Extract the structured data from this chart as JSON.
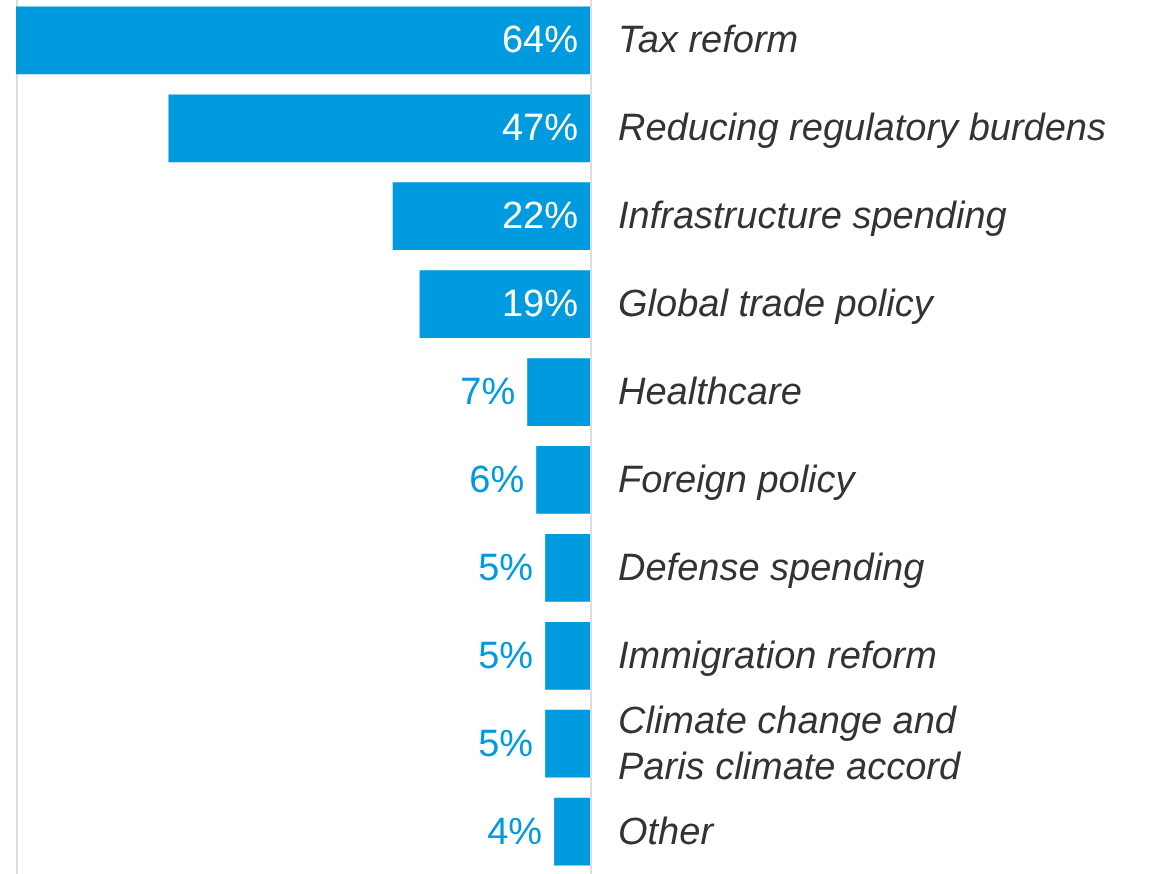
{
  "chart_data": {
    "type": "bar",
    "orientation": "horizontal",
    "categories": [
      "Tax reform",
      "Reducing regulatory burdens",
      "Infrastructure spending",
      "Global trade policy",
      "Healthcare",
      "Foreign policy",
      "Defense spending",
      "Immigration reform",
      "Climate change and\nParis climate accord",
      "Other"
    ],
    "values": [
      64,
      47,
      22,
      19,
      7,
      6,
      5,
      5,
      5,
      4
    ],
    "value_labels": [
      "64%",
      "47%",
      "22%",
      "19%",
      "7%",
      "6%",
      "5%",
      "5%",
      "5%",
      "4%"
    ],
    "color": "#009ade"
  }
}
